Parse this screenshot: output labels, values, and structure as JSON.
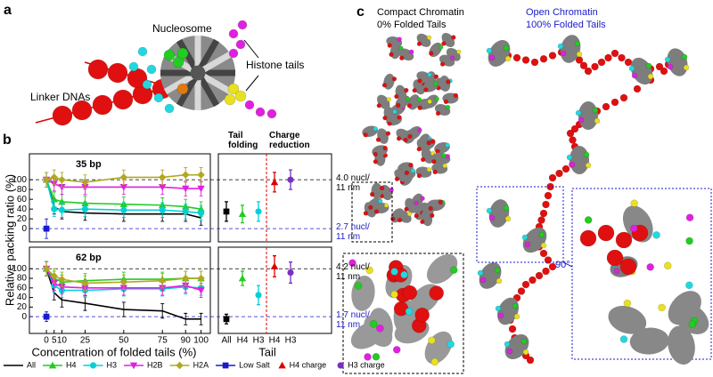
{
  "panel_a": {
    "label": "a",
    "nucleosome": "Nucleosome",
    "histone_tails": "Histone tails",
    "linker_dnas": "Linker DNAs"
  },
  "panel_b": {
    "label": "b",
    "ylabel": "Relative packing ratio (%)",
    "xlabel": "Concentration of folded tails (%)",
    "tail_xlabel": "Tail"
  },
  "panel_c": {
    "label": "c",
    "compact_title": "Compact Chromatin",
    "compact_subtitle": "0% Folded Tails",
    "open_title": "Open Chromatin",
    "open_subtitle": "100% Folded Tails",
    "rotation": "90°"
  },
  "legend": [
    {
      "label": "H4 charge",
      "color": "#e00000",
      "marker": "triangle"
    },
    {
      "label": "H3 charge",
      "color": "#7a2fbf",
      "marker": "circle"
    }
  ],
  "chart_data": [
    {
      "type": "line",
      "title": "35 bp",
      "x": [
        0,
        5,
        10,
        25,
        50,
        75,
        90,
        100
      ],
      "xlim": [
        -11,
        106
      ],
      "ylim": [
        -27,
        153
      ],
      "yticks": [
        0,
        20,
        40,
        60,
        80,
        100
      ],
      "annotations": [
        {
          "value": 100,
          "label": "4.0 nucl/ 11 nm",
          "color": "#000000"
        },
        {
          "value": 0,
          "label": "2.7 nucl/ 11 nm",
          "color": "#1a1acc"
        }
      ],
      "series": [
        {
          "name": "All",
          "color": "#000000",
          "marker": "none",
          "values": [
            100,
            45,
            35,
            32,
            30,
            30,
            30,
            22
          ],
          "errors": [
            15,
            15,
            15,
            15,
            15,
            15,
            15,
            15
          ]
        },
        {
          "name": "H4",
          "color": "#22cc22",
          "marker": "triangle",
          "values": [
            100,
            60,
            55,
            52,
            50,
            48,
            45,
            40
          ],
          "errors": [
            15,
            15,
            15,
            15,
            15,
            15,
            15,
            15
          ]
        },
        {
          "name": "H3",
          "color": "#00d0d8",
          "marker": "circle",
          "values": [
            100,
            40,
            38,
            40,
            38,
            38,
            35,
            32
          ],
          "errors": [
            15,
            15,
            15,
            15,
            15,
            15,
            15,
            15
          ]
        },
        {
          "name": "H2B",
          "color": "#e020e0",
          "marker": "triangle-down",
          "values": [
            100,
            92,
            85,
            85,
            85,
            85,
            82,
            82
          ],
          "errors": [
            15,
            15,
            15,
            15,
            15,
            15,
            15,
            15
          ]
        },
        {
          "name": "H2A",
          "color": "#b0a820",
          "marker": "diamond",
          "values": [
            100,
            105,
            100,
            95,
            105,
            105,
            110,
            110
          ],
          "errors": [
            15,
            15,
            15,
            15,
            15,
            15,
            15,
            15
          ]
        },
        {
          "name": "Low Salt",
          "color": "#1a1acc",
          "marker": "square",
          "values": [
            0,
            null,
            null,
            null,
            null,
            null,
            null,
            null
          ],
          "errors": [
            20,
            null,
            null,
            null,
            null,
            null,
            null,
            null
          ]
        }
      ]
    },
    {
      "type": "points",
      "groups": [
        "Tail folding",
        "Charge reduction"
      ],
      "values": [
        35,
        30,
        35,
        95,
        100
      ],
      "errors": [
        20,
        18,
        20,
        20,
        20
      ],
      "colors": [
        "#000000",
        "#22cc22",
        "#00d0d8",
        "#e00000",
        "#7a2fbf"
      ],
      "markers": [
        "square",
        "triangle",
        "circle",
        "triangle",
        "circle"
      ]
    },
    {
      "type": "line",
      "title": "62 bp",
      "x": [
        0,
        5,
        10,
        25,
        50,
        75,
        90,
        100
      ],
      "xlim": [
        -11,
        106
      ],
      "xticks": [
        0,
        5,
        10,
        25,
        50,
        75,
        90,
        100
      ],
      "ylim": [
        -35,
        145
      ],
      "yticks": [
        0,
        20,
        40,
        60,
        80,
        100
      ],
      "annotations": [
        {
          "value": 100,
          "label": "4.2 nucl/ 11 nm",
          "color": "#000000"
        },
        {
          "value": 0,
          "label": "1.7 nucl/ 11 nm",
          "color": "#1a1acc"
        }
      ],
      "series": [
        {
          "name": "All",
          "color": "#000000",
          "marker": "none",
          "values": [
            100,
            50,
            35,
            28,
            15,
            12,
            -5,
            -5
          ],
          "errors": [
            15,
            15,
            15,
            15,
            15,
            15,
            12,
            12
          ]
        },
        {
          "name": "H4",
          "color": "#22cc22",
          "marker": "triangle",
          "values": [
            100,
            80,
            72,
            75,
            78,
            78,
            80,
            80
          ],
          "errors": [
            15,
            15,
            15,
            15,
            15,
            15,
            15,
            15
          ]
        },
        {
          "name": "H3",
          "color": "#00d0d8",
          "marker": "circle",
          "values": [
            100,
            65,
            55,
            55,
            58,
            58,
            62,
            60
          ],
          "errors": [
            15,
            15,
            15,
            15,
            15,
            15,
            15,
            15
          ]
        },
        {
          "name": "H2B",
          "color": "#e020e0",
          "marker": "triangle-down",
          "values": [
            100,
            70,
            62,
            60,
            60,
            60,
            65,
            55
          ],
          "errors": [
            15,
            15,
            15,
            15,
            15,
            15,
            15,
            15
          ]
        },
        {
          "name": "H2A",
          "color": "#b0a820",
          "marker": "diamond",
          "values": [
            100,
            85,
            78,
            70,
            72,
            75,
            80,
            80
          ],
          "errors": [
            15,
            15,
            15,
            15,
            15,
            15,
            15,
            15
          ]
        },
        {
          "name": "Low Salt",
          "color": "#1a1acc",
          "marker": "square",
          "values": [
            0,
            null,
            null,
            null,
            null,
            null,
            null,
            null
          ],
          "errors": [
            10,
            null,
            null,
            null,
            null,
            null,
            null,
            null
          ]
        }
      ]
    },
    {
      "type": "points",
      "categories": [
        "All",
        "H4",
        "H3",
        "H4",
        "H3"
      ],
      "values": [
        -5,
        80,
        45,
        105,
        92
      ],
      "errors": [
        10,
        15,
        20,
        22,
        22
      ],
      "colors": [
        "#000000",
        "#22cc22",
        "#00d0d8",
        "#e00000",
        "#7a2fbf"
      ],
      "markers": [
        "square",
        "triangle",
        "circle",
        "triangle",
        "circle"
      ]
    }
  ]
}
